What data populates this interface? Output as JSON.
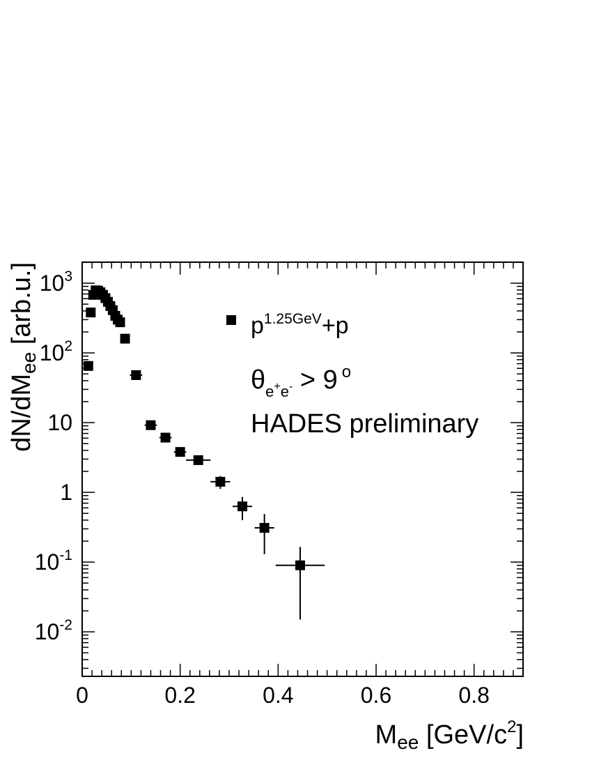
{
  "chart_data": {
    "type": "scatter",
    "xlabel": {
      "main": "M",
      "sub": "ee",
      "units": " [GeV/c",
      "sup": "2",
      "close": "]"
    },
    "ylabel": {
      "main": "dN/dM",
      "sub": "ee",
      "units": " [arb.u.]"
    },
    "xlim": [
      0,
      0.9
    ],
    "ylim": [
      0.0023,
      2000
    ],
    "log_y": true,
    "x_ticks": [
      {
        "value": 0,
        "label": "0"
      },
      {
        "value": 0.2,
        "label": "0.2"
      },
      {
        "value": 0.4,
        "label": "0.4"
      },
      {
        "value": 0.6,
        "label": "0.6"
      },
      {
        "value": 0.8,
        "label": "0.8"
      }
    ],
    "y_ticks": [
      {
        "value": 0.01,
        "base": "10",
        "exp": "-2"
      },
      {
        "value": 0.1,
        "base": "10",
        "exp": "-1"
      },
      {
        "value": 1,
        "base": "1",
        "exp": ""
      },
      {
        "value": 10,
        "base": "10",
        "exp": ""
      },
      {
        "value": 100,
        "base": "10",
        "exp": "2"
      },
      {
        "value": 1000,
        "base": "10",
        "exp": "3"
      }
    ],
    "legend": {
      "position": "top-right",
      "entry": {
        "main": "p",
        "sup": "1.25GeV",
        "tail": "+p"
      }
    },
    "annotations": {
      "theta": {
        "symbol": "θ",
        "sub1": "e",
        "sup1": "+",
        "sub2": "e",
        "sup2": "-",
        "tail": " > 9",
        "deg": "o"
      },
      "experiment": "HADES preliminary"
    },
    "series": [
      {
        "marker": "square",
        "color": "#000000",
        "points": [
          {
            "x": 0.0125,
            "y": 65,
            "xerr": 0.005,
            "ylo": 0,
            "yhi": 0
          },
          {
            "x": 0.0175,
            "y": 380,
            "xerr": 0.005,
            "ylo": 0,
            "yhi": 0
          },
          {
            "x": 0.0225,
            "y": 680,
            "xerr": 0.005,
            "ylo": 0,
            "yhi": 0
          },
          {
            "x": 0.0275,
            "y": 790,
            "xerr": 0.005,
            "ylo": 0,
            "yhi": 0
          },
          {
            "x": 0.0325,
            "y": 780,
            "xerr": 0.005,
            "ylo": 0,
            "yhi": 0
          },
          {
            "x": 0.0375,
            "y": 740,
            "xerr": 0.005,
            "ylo": 0,
            "yhi": 0
          },
          {
            "x": 0.0425,
            "y": 680,
            "xerr": 0.005,
            "ylo": 0,
            "yhi": 0
          },
          {
            "x": 0.0475,
            "y": 610,
            "xerr": 0.005,
            "ylo": 0,
            "yhi": 0
          },
          {
            "x": 0.0525,
            "y": 540,
            "xerr": 0.005,
            "ylo": 0,
            "yhi": 0
          },
          {
            "x": 0.0575,
            "y": 470,
            "xerr": 0.005,
            "ylo": 0,
            "yhi": 0
          },
          {
            "x": 0.0625,
            "y": 410,
            "xerr": 0.005,
            "ylo": 0,
            "yhi": 0
          },
          {
            "x": 0.0675,
            "y": 340,
            "xerr": 0.005,
            "ylo": 0,
            "yhi": 0
          },
          {
            "x": 0.0725,
            "y": 300,
            "xerr": 0.005,
            "ylo": 0,
            "yhi": 0
          },
          {
            "x": 0.0775,
            "y": 275,
            "xerr": 0.005,
            "ylo": 0,
            "yhi": 0
          },
          {
            "x": 0.0875,
            "y": 160,
            "xerr": 0.005,
            "ylo": 0,
            "yhi": 0
          },
          {
            "x": 0.11,
            "y": 48,
            "xerr": 0.0125,
            "ylo": 4,
            "yhi": 4
          },
          {
            "x": 0.14,
            "y": 9.2,
            "xerr": 0.0125,
            "ylo": 0.9,
            "yhi": 1.0
          },
          {
            "x": 0.17,
            "y": 6.1,
            "xerr": 0.0125,
            "ylo": 0.8,
            "yhi": 0.8
          },
          {
            "x": 0.2,
            "y": 3.8,
            "xerr": 0.0125,
            "ylo": 0.6,
            "yhi": 0.6
          },
          {
            "x": 0.237,
            "y": 2.9,
            "xerr": 0.025,
            "ylo": 0.4,
            "yhi": 0.4
          },
          {
            "x": 0.282,
            "y": 1.42,
            "xerr": 0.02,
            "ylo": 0.3,
            "yhi": 0.3
          },
          {
            "x": 0.327,
            "y": 0.63,
            "xerr": 0.02,
            "ylo": 0.23,
            "yhi": 0.23
          },
          {
            "x": 0.372,
            "y": 0.31,
            "xerr": 0.02,
            "ylo": 0.18,
            "yhi": 0.18
          },
          {
            "x": 0.445,
            "y": 0.09,
            "xerr": 0.05,
            "ylo": 0.075,
            "yhi": 0.075
          }
        ]
      }
    ]
  }
}
